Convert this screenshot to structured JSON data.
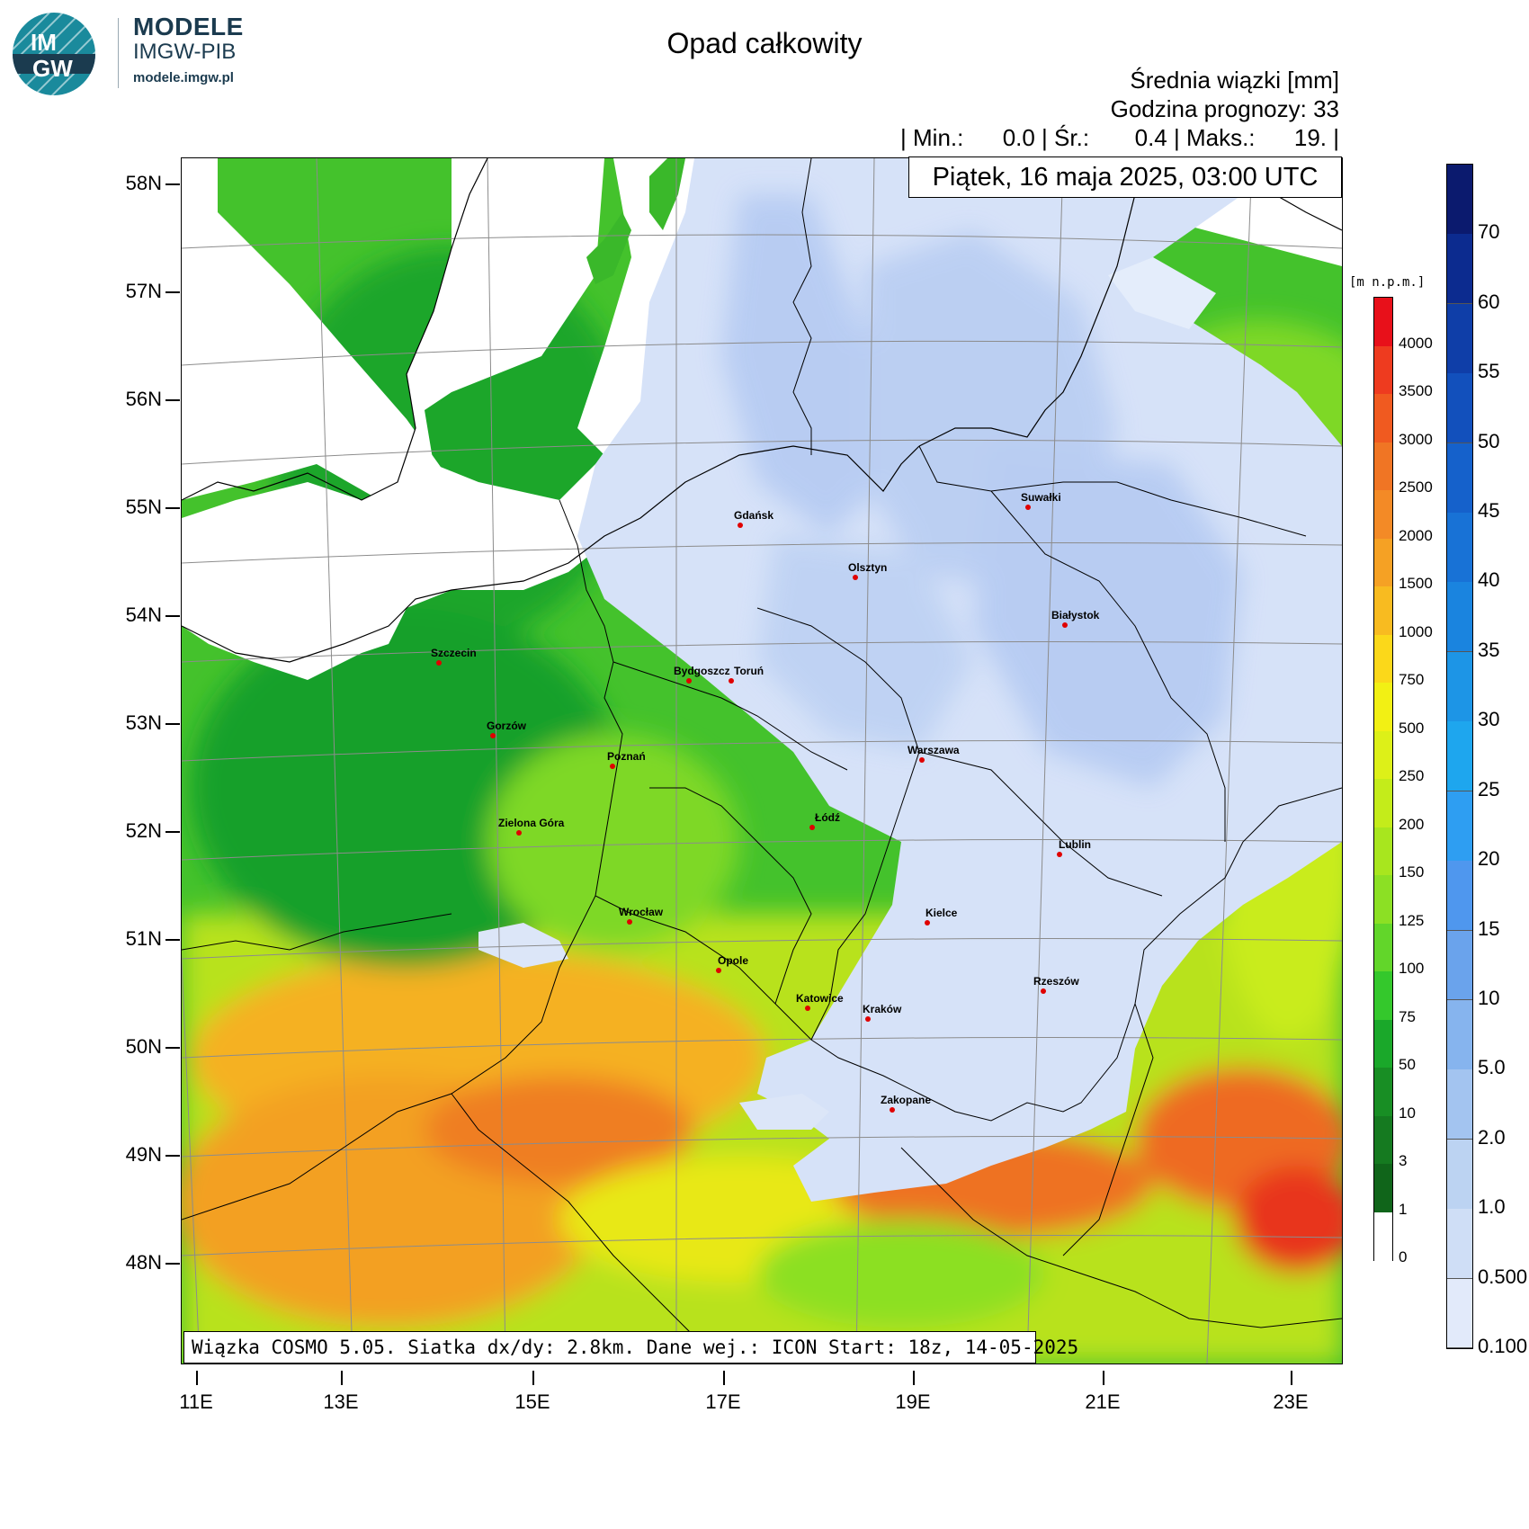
{
  "logo": {
    "mark_line1": "IM",
    "mark_line2": "GW",
    "title": "MODELE",
    "subtitle": "IMGW-PIB",
    "url": "modele.imgw.pl",
    "colors": {
      "circle": "#1a8a9c",
      "dark": "#1b3b4f"
    }
  },
  "header": {
    "title": "Opad całkowity",
    "line1": "Średnia wiązki [mm]",
    "line2": "Godzina prognozy: 33",
    "stats": "| Min.:      0.0 | Śr.:       0.4 | Maks.:      19. |",
    "date": "Piątek, 16 maja 2025, 03:00 UTC"
  },
  "map": {
    "lat_labels": [
      "58N",
      "57N",
      "56N",
      "55N",
      "54N",
      "53N",
      "52N",
      "51N",
      "50N",
      "49N",
      "48N"
    ],
    "lon_labels": [
      "11E",
      "13E",
      "15E",
      "17E",
      "19E",
      "21E",
      "23E"
    ],
    "cities": [
      {
        "name": "Gdańsk",
        "dot": [
          822,
          583
        ],
        "label": [
          815,
          565
        ]
      },
      {
        "name": "Suwałki",
        "dot": [
          1142,
          563
        ],
        "label": [
          1134,
          545
        ]
      },
      {
        "name": "Olsztyn",
        "dot": [
          950,
          641
        ],
        "label": [
          942,
          623
        ]
      },
      {
        "name": "Białystok",
        "dot": [
          1183,
          694
        ],
        "label": [
          1168,
          676
        ]
      },
      {
        "name": "Szczecin",
        "dot": [
          487,
          736
        ],
        "label": [
          478,
          718
        ]
      },
      {
        "name": "Bydgoszcz",
        "dot": [
          765,
          756
        ],
        "label": [
          748,
          738
        ]
      },
      {
        "name": "Toruń",
        "dot": [
          812,
          756
        ],
        "label": [
          815,
          738
        ]
      },
      {
        "name": "Gorzów",
        "dot": [
          547,
          817
        ],
        "label": [
          540,
          799
        ]
      },
      {
        "name": "Poznań",
        "dot": [
          680,
          851
        ],
        "label": [
          674,
          833
        ]
      },
      {
        "name": "Warszawa",
        "dot": [
          1024,
          844
        ],
        "label": [
          1008,
          826
        ]
      },
      {
        "name": "Łódź",
        "dot": [
          902,
          919
        ],
        "label": [
          905,
          901
        ]
      },
      {
        "name": "Zielona Góra",
        "dot": [
          576,
          925
        ],
        "label": [
          553,
          907
        ]
      },
      {
        "name": "Lublin",
        "dot": [
          1177,
          949
        ],
        "label": [
          1176,
          931
        ]
      },
      {
        "name": "Wrocław",
        "dot": [
          699,
          1024
        ],
        "label": [
          687,
          1006
        ]
      },
      {
        "name": "Kielce",
        "dot": [
          1030,
          1025
        ],
        "label": [
          1028,
          1007
        ]
      },
      {
        "name": "Opole",
        "dot": [
          798,
          1078
        ],
        "label": [
          797,
          1060
        ]
      },
      {
        "name": "Rzeszów",
        "dot": [
          1159,
          1101
        ],
        "label": [
          1148,
          1083
        ]
      },
      {
        "name": "Katowice",
        "dot": [
          897,
          1120
        ],
        "label": [
          884,
          1102
        ]
      },
      {
        "name": "Kraków",
        "dot": [
          964,
          1132
        ],
        "label": [
          958,
          1114
        ]
      },
      {
        "name": "Zakopane",
        "dot": [
          991,
          1233
        ],
        "label": [
          978,
          1215
        ]
      }
    ],
    "footer": "Wiązka COSMO 5.05. Siatka dx/dy: 2.8km. Dane wej.: ICON Start: 18z, 14-05-2025"
  },
  "elevation_legend": {
    "unit": "[m n.p.m.]",
    "labels": [
      "4000",
      "3500",
      "3000",
      "2500",
      "2000",
      "1500",
      "1000",
      "750",
      "500",
      "250",
      "200",
      "150",
      "125",
      "100",
      "75",
      "50",
      "10",
      "3",
      "1",
      "0"
    ],
    "colors": [
      "#e8101a",
      "#ee3b1f",
      "#f05a20",
      "#f07524",
      "#f38a26",
      "#f5a124",
      "#f8bb20",
      "#fbd81a",
      "#f2f014",
      "#ddf018",
      "#c4ec1a",
      "#a8e61e",
      "#8ce024",
      "#62d62a",
      "#34c82c",
      "#1aa82a",
      "#188e24",
      "#157a20",
      "#10651a",
      "#ffffff"
    ]
  },
  "precip_legend": {
    "labels": [
      "70",
      "60",
      "55",
      "50",
      "45",
      "40",
      "35",
      "30",
      "25",
      "20",
      "15",
      "10",
      "5.0",
      "2.0",
      "1.0",
      "0.500",
      "0.100"
    ],
    "colors": [
      "#0b1a6e",
      "#0c2b8f",
      "#0f3ea8",
      "#1250bc",
      "#1561cb",
      "#1872d6",
      "#1a84df",
      "#1d95e6",
      "#1ea6ee",
      "#2e9ef2",
      "#4f97ee",
      "#6aa3ec",
      "#86b4ee",
      "#a3c4f0",
      "#bcd3f2",
      "#cfdef6",
      "#e2eafa"
    ]
  }
}
